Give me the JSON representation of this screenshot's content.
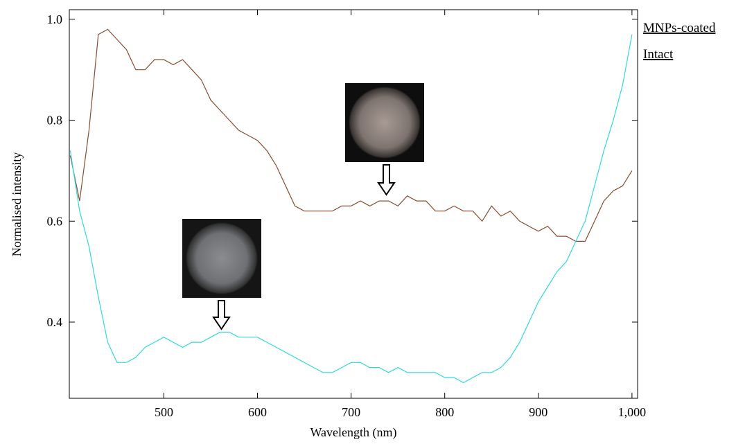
{
  "chart_data": {
    "type": "line",
    "x_label": "Wavelength (nm)",
    "y_label": "Normalised intensity",
    "x": [
      400,
      410,
      420,
      430,
      440,
      450,
      460,
      470,
      480,
      490,
      500,
      510,
      520,
      530,
      540,
      550,
      560,
      570,
      580,
      590,
      600,
      610,
      620,
      630,
      640,
      650,
      660,
      670,
      680,
      690,
      700,
      710,
      720,
      730,
      740,
      750,
      760,
      770,
      780,
      790,
      800,
      810,
      820,
      830,
      840,
      850,
      860,
      870,
      880,
      890,
      900,
      910,
      920,
      930,
      940,
      950,
      960,
      970,
      980,
      990,
      1000
    ],
    "series": [
      {
        "name": "MNPs-coated",
        "color": "#8b4a2b",
        "values": [
          0.73,
          0.64,
          0.78,
          0.97,
          0.98,
          0.96,
          0.94,
          0.9,
          0.9,
          0.92,
          0.92,
          0.91,
          0.92,
          0.9,
          0.88,
          0.84,
          0.82,
          0.8,
          0.78,
          0.77,
          0.76,
          0.74,
          0.71,
          0.67,
          0.63,
          0.62,
          0.62,
          0.62,
          0.62,
          0.63,
          0.63,
          0.64,
          0.63,
          0.64,
          0.64,
          0.63,
          0.65,
          0.64,
          0.64,
          0.62,
          0.62,
          0.63,
          0.62,
          0.62,
          0.6,
          0.63,
          0.61,
          0.62,
          0.6,
          0.59,
          0.58,
          0.59,
          0.57,
          0.57,
          0.56,
          0.56,
          0.6,
          0.64,
          0.66,
          0.67,
          0.7
        ]
      },
      {
        "name": "Intact",
        "color": "#2fd8e0",
        "values": [
          0.74,
          0.62,
          0.55,
          0.45,
          0.36,
          0.32,
          0.32,
          0.33,
          0.35,
          0.36,
          0.37,
          0.36,
          0.35,
          0.36,
          0.36,
          0.37,
          0.38,
          0.38,
          0.37,
          0.37,
          0.37,
          0.36,
          0.35,
          0.34,
          0.33,
          0.32,
          0.31,
          0.3,
          0.3,
          0.31,
          0.32,
          0.32,
          0.31,
          0.31,
          0.3,
          0.31,
          0.3,
          0.3,
          0.3,
          0.3,
          0.29,
          0.29,
          0.28,
          0.29,
          0.3,
          0.3,
          0.31,
          0.33,
          0.36,
          0.4,
          0.44,
          0.47,
          0.5,
          0.52,
          0.56,
          0.6,
          0.67,
          0.74,
          0.8,
          0.87,
          0.97
        ]
      }
    ],
    "xlim": [
      399,
      1006
    ],
    "ylim": [
      0.249,
      1.019
    ],
    "xticks": [
      500,
      600,
      700,
      800,
      900,
      {
        "value": 1000,
        "label": "1,000"
      }
    ],
    "yticks": [
      {
        "value": 1,
        "label": "1.0"
      },
      0.8,
      0.6,
      0.4
    ]
  }
}
